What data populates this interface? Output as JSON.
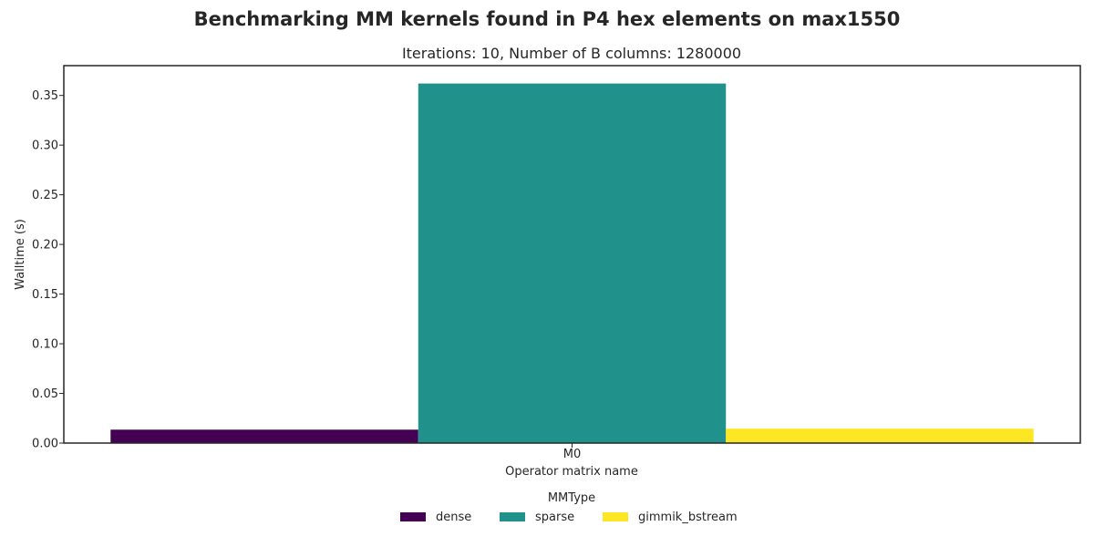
{
  "chart_data": {
    "type": "bar",
    "suptitle": "Benchmarking MM kernels found in P4 hex elements on max1550",
    "title": "Iterations: 10, Number of B columns: 1280000",
    "xlabel": "Operator matrix name",
    "ylabel": "Walltime (s)",
    "categories": [
      "M0"
    ],
    "series": [
      {
        "name": "dense",
        "values": [
          0.0135
        ],
        "color": "#440154"
      },
      {
        "name": "sparse",
        "values": [
          0.362
        ],
        "color": "#21918c"
      },
      {
        "name": "gimmik_bstream",
        "values": [
          0.0145
        ],
        "color": "#fde725"
      }
    ],
    "ylim": [
      0,
      0.38
    ],
    "yticks": [
      "0.00",
      "0.05",
      "0.10",
      "0.15",
      "0.20",
      "0.25",
      "0.30",
      "0.35"
    ],
    "grid": false,
    "legend": {
      "title": "MMType",
      "position": "bottom-center"
    }
  }
}
